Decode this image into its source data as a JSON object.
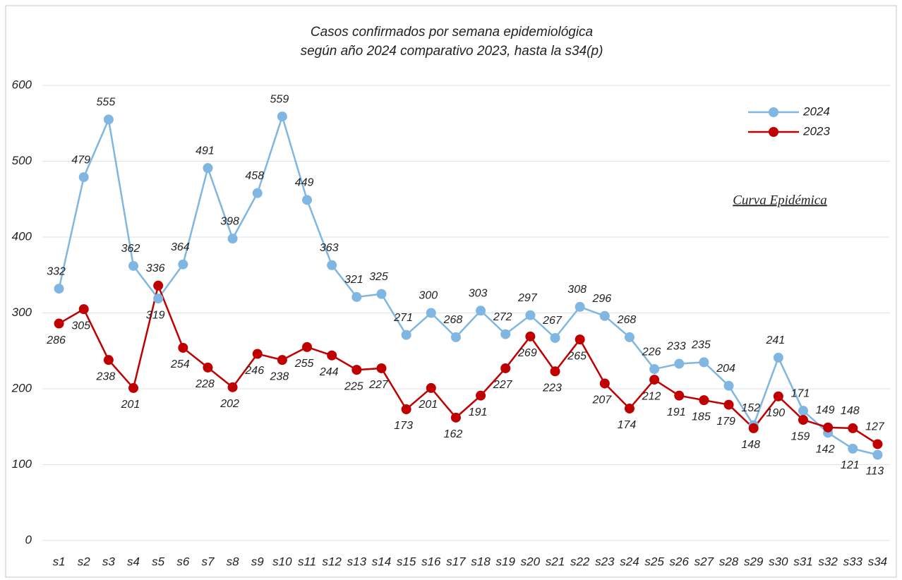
{
  "chart_data": {
    "type": "line",
    "title": "Casos confirmados por semana epidemiológica",
    "subtitle": "según año 2024 comparativo 2023, hasta la s34(p)",
    "annotation": "Curva Epidémica",
    "categories": [
      "s1",
      "s2",
      "s3",
      "s4",
      "s5",
      "s6",
      "s7",
      "s8",
      "s9",
      "s10",
      "s11",
      "s12",
      "s13",
      "s14",
      "s15",
      "s16",
      "s17",
      "s18",
      "s19",
      "s20",
      "s21",
      "s22",
      "s23",
      "s24",
      "s25",
      "s26",
      "s27",
      "s28",
      "s29",
      "s30",
      "s31",
      "s32",
      "s33",
      "s34"
    ],
    "series": [
      {
        "name": "2024",
        "color": "#7fb6e2",
        "values": [
          332,
          479,
          555,
          362,
          319,
          364,
          491,
          398,
          458,
          559,
          449,
          363,
          321,
          325,
          271,
          300,
          268,
          303,
          272,
          297,
          267,
          308,
          296,
          268,
          226,
          233,
          235,
          204,
          152,
          241,
          171,
          142,
          121,
          113
        ]
      },
      {
        "name": "2023",
        "color": "#c00000",
        "values": [
          286,
          305,
          238,
          201,
          336,
          254,
          228,
          202,
          246,
          238,
          255,
          244,
          225,
          227,
          173,
          201,
          162,
          191,
          227,
          269,
          223,
          265,
          207,
          174,
          212,
          191,
          185,
          179,
          148,
          190,
          159,
          149,
          148,
          127
        ]
      }
    ],
    "ylim": [
      0,
      600
    ],
    "yticks": [
      0,
      100,
      200,
      300,
      400,
      500,
      600
    ],
    "grid": true,
    "legend": "top-right"
  }
}
